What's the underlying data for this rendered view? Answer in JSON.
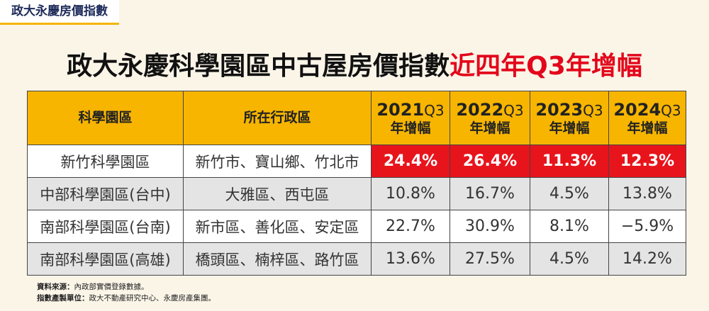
{
  "badge": "政大永慶房價指數",
  "title": {
    "main": "政大永慶科學園區中古屋房價指數",
    "highlight": "近四年Q3年增幅"
  },
  "table": {
    "header": {
      "park": "科學園區",
      "district": "所在行政區",
      "years": [
        {
          "year": "2021",
          "quarter": "Q3",
          "label": "年增幅"
        },
        {
          "year": "2022",
          "quarter": "Q3",
          "label": "年增幅"
        },
        {
          "year": "2023",
          "quarter": "Q3",
          "label": "年增幅"
        },
        {
          "year": "2024",
          "quarter": "Q3",
          "label": "年增幅"
        }
      ]
    },
    "rows": [
      [
        "新竹科學園區",
        "新竹市、寶山鄉、竹北市",
        "24.4%",
        "26.4%",
        "11.3%",
        "12.3%"
      ],
      [
        "中部科學園區(台中)",
        "大雅區、西屯區",
        "10.8%",
        "16.7%",
        "4.5%",
        "13.8%"
      ],
      [
        "南部科學園區(台南)",
        "新市區、善化區、安定區",
        "22.7%",
        "30.9%",
        "8.1%",
        "−5.9%"
      ],
      [
        "南部科學園區(高雄)",
        "橋頭區、楠梓區、路竹區",
        "13.6%",
        "27.5%",
        "4.5%",
        "14.2%"
      ]
    ]
  },
  "footer": [
    {
      "label": "資料來源：",
      "text": "內政部實價登錄數據。"
    },
    {
      "label": "指數產製單位：",
      "text": "政大不動產研究中心、永慶房產集團。"
    }
  ]
}
